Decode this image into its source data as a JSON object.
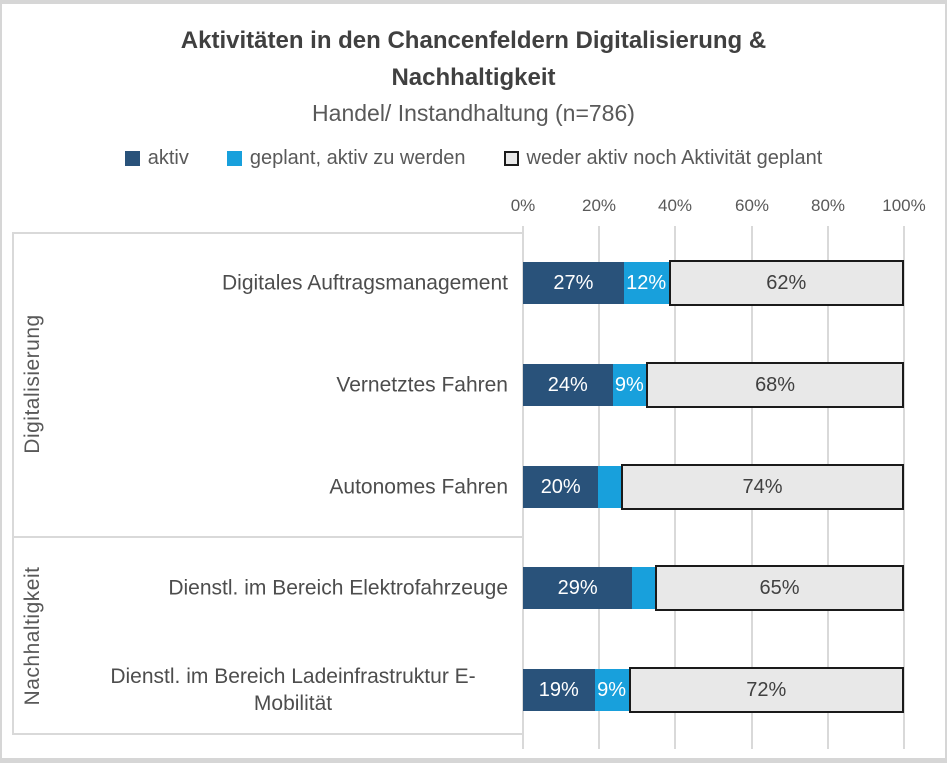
{
  "title": "Aktivitäten in den Chancenfeldern Digitalisierung & Nachhaltigkeit",
  "subtitle": "Handel/ Instandhaltung (n=786)",
  "legend": {
    "items": [
      {
        "label": "aktiv",
        "color": "#29527A"
      },
      {
        "label": "geplant, aktiv zu werden",
        "color": "#18A0DC"
      },
      {
        "label": "weder aktiv noch Aktivität geplant",
        "color": "#E8E8E8",
        "border": "#1A1A1A"
      }
    ]
  },
  "groups": [
    {
      "label": "Digitalisierung"
    },
    {
      "label": "Nachhaltigkeit"
    }
  ],
  "colors": {
    "aktiv": "#29527A",
    "geplant": "#18A0DC",
    "weder_fill": "#E8E8E8",
    "weder_border": "#1A1A1A",
    "gridline": "#D9D9D9"
  },
  "chart_data": {
    "type": "bar",
    "orientation": "horizontal-stacked",
    "title": "Aktivitäten in den Chancenfeldern Digitalisierung & Nachhaltigkeit",
    "subtitle": "Handel/ Instandhaltung (n=786)",
    "series_names": [
      "aktiv",
      "geplant, aktiv zu werden",
      "weder aktiv noch Aktivität geplant"
    ],
    "x_axis": {
      "ticks": [
        "0%",
        "20%",
        "40%",
        "60%",
        "80%",
        "100%"
      ],
      "range": [
        0,
        100
      ],
      "grid": true
    },
    "legend_position": "top",
    "rows": [
      {
        "group": "Digitalisierung",
        "label": "Digitales Auftragsmanagement",
        "values": [
          27,
          12,
          62
        ],
        "labels": [
          "27%",
          "12%",
          "62%"
        ]
      },
      {
        "group": "Digitalisierung",
        "label": "Vernetztes Fahren",
        "values": [
          24,
          9,
          68
        ],
        "labels": [
          "24%",
          "9%",
          "68%"
        ]
      },
      {
        "group": "Digitalisierung",
        "label": "Autonomes Fahren",
        "values": [
          20,
          6,
          74
        ],
        "labels": [
          "20%",
          "",
          "74%"
        ]
      },
      {
        "group": "Nachhaltigkeit",
        "label": "Dienstl. im Bereich Elektrofahrzeuge",
        "values": [
          29,
          6,
          65
        ],
        "labels": [
          "29%",
          "",
          "65%"
        ]
      },
      {
        "group": "Nachhaltigkeit",
        "label": "Dienstl. im Bereich Ladeinfrastruktur E-Mobilität",
        "values": [
          19,
          9,
          72
        ],
        "labels": [
          "19%",
          "9%",
          "72%"
        ]
      }
    ]
  }
}
